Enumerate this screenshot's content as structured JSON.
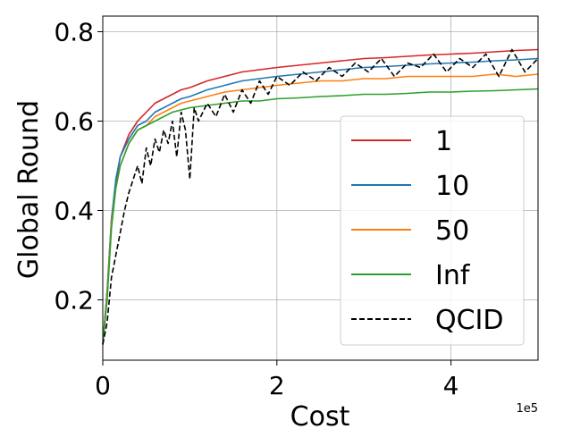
{
  "chart_data": {
    "type": "line",
    "xlabel": "Cost",
    "ylabel": "Global Round",
    "x_offset_label": "1e5",
    "xlim": [
      0,
      500000
    ],
    "ylim": [
      0.065,
      0.835
    ],
    "xticks": [
      0,
      200000,
      400000
    ],
    "xtick_labels": [
      "0",
      "2",
      "4"
    ],
    "yticks": [
      0.2,
      0.4,
      0.6,
      0.8
    ],
    "ytick_labels": [
      "0.2",
      "0.4",
      "0.6",
      "0.8"
    ],
    "grid": true,
    "legend_position": "right",
    "series": [
      {
        "name": "1",
        "color": "#d62728",
        "style": "solid",
        "x": [
          0,
          5000,
          10000,
          15000,
          20000,
          30000,
          40000,
          50000,
          60000,
          70000,
          80000,
          90000,
          100000,
          120000,
          140000,
          160000,
          180000,
          200000,
          225000,
          250000,
          275000,
          300000,
          325000,
          350000,
          375000,
          400000,
          425000,
          450000,
          475000,
          500000
        ],
        "y": [
          0.1,
          0.22,
          0.38,
          0.46,
          0.52,
          0.57,
          0.6,
          0.62,
          0.64,
          0.65,
          0.66,
          0.67,
          0.675,
          0.69,
          0.7,
          0.71,
          0.715,
          0.72,
          0.725,
          0.73,
          0.735,
          0.74,
          0.742,
          0.745,
          0.748,
          0.75,
          0.752,
          0.755,
          0.758,
          0.76
        ]
      },
      {
        "name": "10",
        "color": "#1f77b4",
        "style": "solid",
        "x": [
          0,
          5000,
          10000,
          15000,
          20000,
          30000,
          40000,
          50000,
          60000,
          70000,
          80000,
          90000,
          100000,
          120000,
          140000,
          160000,
          180000,
          200000,
          225000,
          250000,
          275000,
          300000,
          325000,
          350000,
          375000,
          400000,
          425000,
          450000,
          475000,
          500000
        ],
        "y": [
          0.1,
          0.22,
          0.38,
          0.47,
          0.52,
          0.56,
          0.59,
          0.6,
          0.62,
          0.63,
          0.64,
          0.65,
          0.655,
          0.67,
          0.68,
          0.69,
          0.695,
          0.7,
          0.705,
          0.71,
          0.715,
          0.72,
          0.722,
          0.725,
          0.728,
          0.73,
          0.732,
          0.735,
          0.737,
          0.74
        ]
      },
      {
        "name": "50",
        "color": "#ff7f0e",
        "style": "solid",
        "x": [
          0,
          5000,
          10000,
          15000,
          20000,
          30000,
          40000,
          50000,
          60000,
          70000,
          80000,
          90000,
          100000,
          120000,
          140000,
          160000,
          180000,
          200000,
          225000,
          250000,
          275000,
          300000,
          325000,
          350000,
          375000,
          400000,
          425000,
          450000,
          475000,
          500000
        ],
        "y": [
          0.1,
          0.21,
          0.37,
          0.45,
          0.5,
          0.55,
          0.58,
          0.59,
          0.61,
          0.62,
          0.63,
          0.64,
          0.645,
          0.655,
          0.665,
          0.67,
          0.675,
          0.68,
          0.685,
          0.69,
          0.69,
          0.695,
          0.695,
          0.7,
          0.7,
          0.7,
          0.7,
          0.705,
          0.7,
          0.705
        ]
      },
      {
        "name": "Inf",
        "color": "#2ca02c",
        "style": "solid",
        "x": [
          0,
          5000,
          10000,
          15000,
          20000,
          30000,
          40000,
          50000,
          60000,
          70000,
          80000,
          90000,
          100000,
          120000,
          140000,
          160000,
          180000,
          200000,
          225000,
          250000,
          275000,
          300000,
          325000,
          350000,
          375000,
          400000,
          425000,
          450000,
          475000,
          500000
        ],
        "y": [
          0.1,
          0.2,
          0.36,
          0.45,
          0.5,
          0.55,
          0.58,
          0.59,
          0.6,
          0.61,
          0.62,
          0.625,
          0.63,
          0.635,
          0.64,
          0.645,
          0.645,
          0.65,
          0.652,
          0.655,
          0.657,
          0.66,
          0.66,
          0.662,
          0.665,
          0.665,
          0.667,
          0.668,
          0.67,
          0.672
        ]
      },
      {
        "name": "QCID",
        "color": "#000000",
        "style": "dashed",
        "x": [
          0,
          5000,
          10000,
          15000,
          20000,
          25000,
          30000,
          35000,
          40000,
          45000,
          50000,
          55000,
          60000,
          65000,
          70000,
          75000,
          80000,
          85000,
          90000,
          95000,
          100000,
          105000,
          110000,
          120000,
          130000,
          140000,
          150000,
          160000,
          170000,
          180000,
          190000,
          200000,
          215000,
          230000,
          245000,
          260000,
          275000,
          290000,
          305000,
          320000,
          335000,
          350000,
          365000,
          380000,
          395000,
          410000,
          425000,
          440000,
          455000,
          470000,
          485000,
          500000
        ],
        "y": [
          0.1,
          0.15,
          0.25,
          0.3,
          0.35,
          0.4,
          0.44,
          0.47,
          0.5,
          0.46,
          0.54,
          0.5,
          0.56,
          0.53,
          0.58,
          0.55,
          0.6,
          0.52,
          0.62,
          0.58,
          0.47,
          0.63,
          0.6,
          0.64,
          0.61,
          0.66,
          0.62,
          0.67,
          0.64,
          0.69,
          0.66,
          0.7,
          0.68,
          0.71,
          0.69,
          0.72,
          0.7,
          0.73,
          0.71,
          0.74,
          0.7,
          0.73,
          0.72,
          0.75,
          0.71,
          0.74,
          0.72,
          0.75,
          0.7,
          0.76,
          0.71,
          0.74
        ]
      }
    ]
  }
}
